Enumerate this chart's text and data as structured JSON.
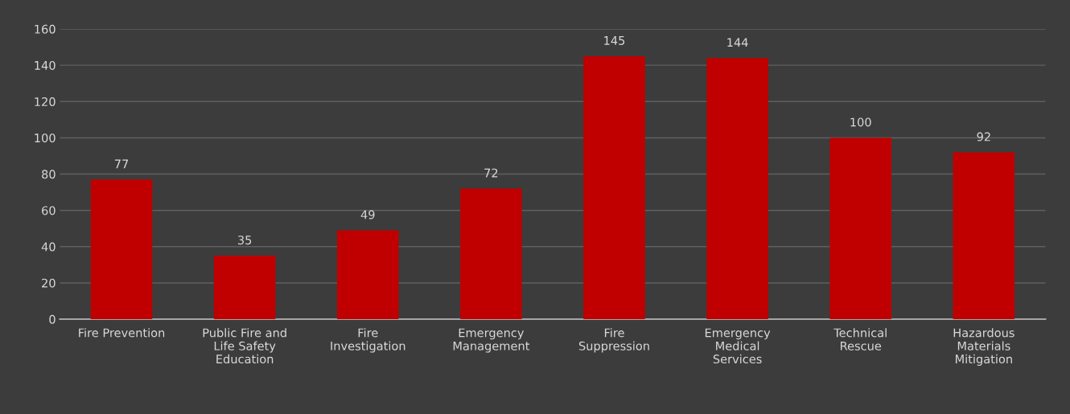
{
  "chart_data": {
    "type": "bar",
    "categories": [
      "Fire Prevention",
      "Public Fire and Life Safety Education",
      "Fire Investigation",
      "Emergency Management",
      "Fire Suppression",
      "Emergency Medical Services",
      "Technical Rescue",
      "Hazardous Materials Mitigation"
    ],
    "values": [
      77,
      35,
      49,
      72,
      145,
      144,
      100,
      92
    ],
    "color": "#c00000",
    "ylim": [
      0,
      160
    ],
    "yticks": [
      0,
      20,
      40,
      60,
      80,
      100,
      120,
      140,
      160
    ],
    "grid": "y",
    "data_labels": true
  }
}
